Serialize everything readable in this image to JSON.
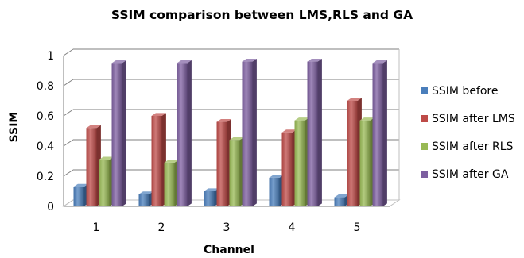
{
  "chart_data": {
    "type": "bar",
    "title": "SSIM comparison between LMS,RLS and GA",
    "xlabel": "Channel",
    "ylabel": "SSIM",
    "ylim": [
      0,
      1
    ],
    "yticks": [
      0,
      0.2,
      0.4,
      0.6,
      0.8,
      1
    ],
    "ytick_labels": [
      "0",
      "0.2",
      "0.4",
      "0.6",
      "0.8",
      "1"
    ],
    "categories": [
      "1",
      "2",
      "3",
      "4",
      "5"
    ],
    "grid": true,
    "legend_position": "right",
    "series": [
      {
        "name": "SSIM before",
        "color": "#4a7ebb",
        "values": [
          0.13,
          0.08,
          0.1,
          0.19,
          0.06
        ]
      },
      {
        "name": "SSIM after LMS",
        "color": "#be4b48",
        "values": [
          0.52,
          0.6,
          0.56,
          0.49,
          0.7
        ]
      },
      {
        "name": "SSIM after RLS",
        "color": "#98b954",
        "values": [
          0.31,
          0.29,
          0.44,
          0.57,
          0.57
        ]
      },
      {
        "name": "SSIM after GA",
        "color": "#7d5fa0",
        "values": [
          0.95,
          0.95,
          0.96,
          0.96,
          0.95
        ]
      }
    ]
  }
}
